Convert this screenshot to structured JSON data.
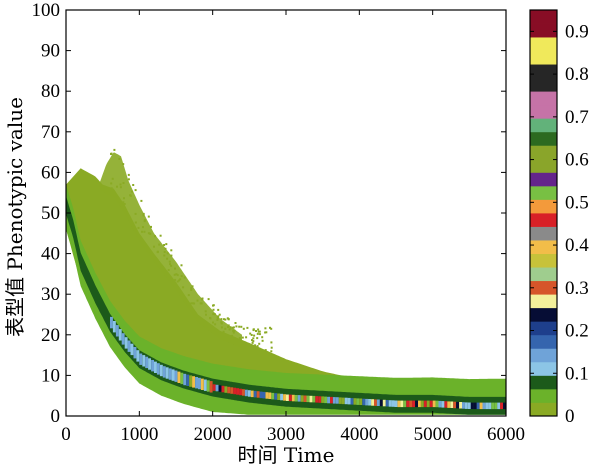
{
  "chart_data": {
    "type": "heatmap",
    "xlabel": "时间 Time",
    "ylabel": "表型值 Phenotypic value",
    "xlim": [
      0,
      6000
    ],
    "ylim": [
      0,
      100
    ],
    "xticks": [
      "0",
      "1000",
      "2000",
      "3000",
      "4000",
      "5000",
      "6000"
    ],
    "yticks": [
      "0",
      "10",
      "20",
      "30",
      "40",
      "50",
      "60",
      "70",
      "80",
      "90",
      "100"
    ],
    "colorbar": {
      "range": [
        0,
        0.95
      ],
      "ticks": [
        "0",
        "0.1",
        "0.2",
        "0.3",
        "0.4",
        "0.5",
        "0.6",
        "0.7",
        "0.8",
        "0.9"
      ],
      "colors": [
        "#8aaa24",
        "#6bb22a",
        "#1c5a1a",
        "#8cc5e6",
        "#6fa3d8",
        "#3565ae",
        "#1e3f8c",
        "#060d35",
        "#f3f09b",
        "#d6552a",
        "#9fcd8e",
        "#c7c23a",
        "#f2bd49",
        "#8a8a8a",
        "#d82027",
        "#f39a3b",
        "#78c043",
        "#64258b",
        "#8aa52a",
        "#8aa52a",
        "#2c6a20",
        "#62b27a",
        "#c673a7",
        "#c673a7",
        "#262626",
        "#262626",
        "#f0e95b",
        "#f0e95b",
        "#880d25",
        "#880d25"
      ]
    },
    "grid": false,
    "series": [
      {
        "role": "outer-envelope-upper",
        "color": "#8aaa24",
        "x": [
          0,
          200,
          400,
          500,
          650,
          800,
          1000,
          1200,
          1500,
          1800,
          2100,
          2500,
          3000,
          3500,
          4000,
          4500,
          5000,
          5500,
          6000
        ],
        "y": [
          57,
          61,
          59,
          57,
          56,
          52,
          45,
          40,
          33,
          25,
          21,
          18,
          14,
          11,
          9,
          8,
          6.5,
          5.5,
          5
        ]
      },
      {
        "role": "outer-envelope-lower",
        "color": "#8aaa24",
        "x": [
          0,
          200,
          400,
          600,
          800,
          1000,
          1300,
          1600,
          2000,
          2500,
          3000,
          3500,
          4000,
          4500,
          5000,
          5500,
          6000
        ],
        "y": [
          46,
          33,
          26,
          20,
          14,
          10,
          7,
          5,
          3,
          2,
          1.5,
          1,
          1,
          0.5,
          0.5,
          0.5,
          0.5
        ]
      },
      {
        "role": "sparse-plume-upper",
        "color": "#8aaa24",
        "x": [
          450,
          550,
          650,
          750,
          850,
          1000,
          1200,
          1500,
          1800,
          2100,
          2400
        ],
        "y": [
          57,
          62,
          65,
          64,
          58,
          52,
          45,
          38,
          30,
          24,
          20
        ]
      },
      {
        "role": "dense-core-centre",
        "color": "#1c5a1a",
        "x": [
          0,
          100,
          200,
          400,
          600,
          800,
          1000,
          1300,
          1600,
          2000,
          2500,
          3000,
          3500,
          4000,
          4500,
          5000,
          5500,
          6000
        ],
        "y": [
          52,
          46,
          38,
          30,
          23,
          18,
          14,
          11,
          9,
          7,
          5.5,
          4.5,
          4,
          3.5,
          3,
          3,
          2.5,
          2.5
        ]
      }
    ]
  }
}
